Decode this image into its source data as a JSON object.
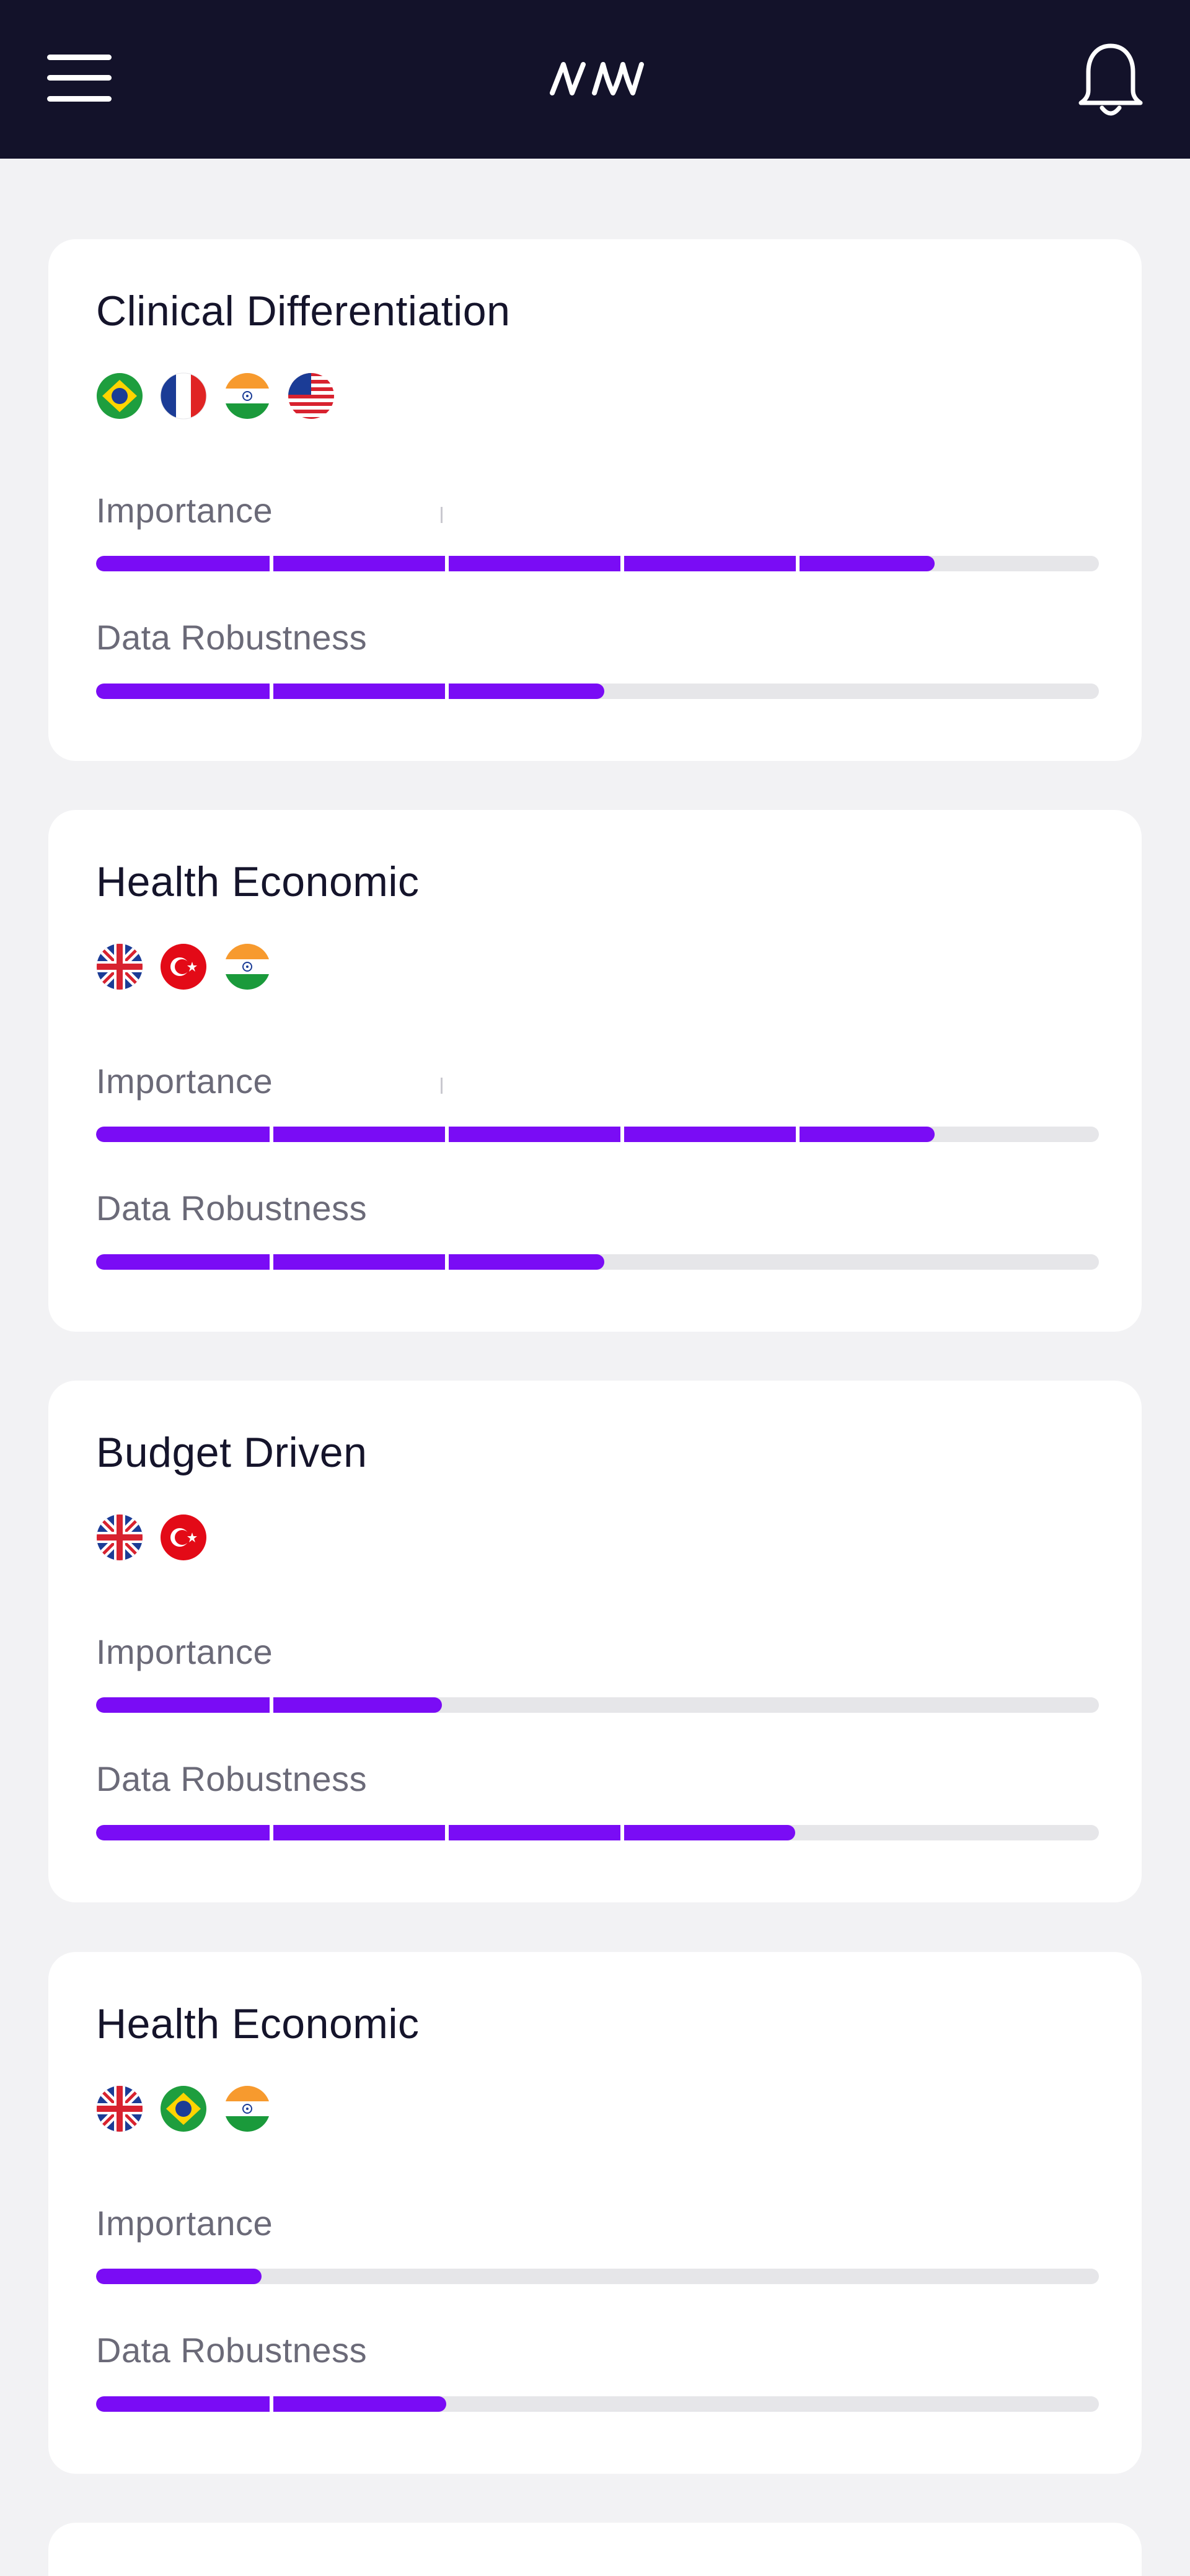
{
  "header": {
    "menu_icon": "hamburger-menu-icon",
    "logo_icon": "nm-logo-icon",
    "notification_icon": "bell-icon"
  },
  "colors": {
    "header_bg": "#13122a",
    "accent": "#7a0cf5",
    "track": "#e6e6e9",
    "page_bg": "#f2f2f4"
  },
  "cards": [
    {
      "title": "Clinical Differentiation",
      "flags": [
        "brazil-flag-icon",
        "france-flag-icon",
        "india-flag-icon",
        "usa-flag-icon"
      ],
      "metrics": [
        {
          "label": "Importance",
          "level": 0.836
        },
        {
          "label": "Data Robustness",
          "level": 0.507
        }
      ]
    },
    {
      "title": "Health Economic",
      "flags": [
        "uk-flag-icon",
        "turkey-flag-icon",
        "india-flag-icon"
      ],
      "metrics": [
        {
          "label": "Importance",
          "level": 0.836
        },
        {
          "label": "Data Robustness",
          "level": 0.507
        }
      ]
    },
    {
      "title": "Budget Driven",
      "flags": [
        "uk-flag-icon",
        "turkey-flag-icon"
      ],
      "metrics": [
        {
          "label": "Importance",
          "level": 0.345
        },
        {
          "label": "Data Robustness",
          "level": 0.697
        }
      ]
    },
    {
      "title": "Health Economic",
      "flags": [
        "uk-flag-icon",
        "brazil-flag-icon",
        "india-flag-icon"
      ],
      "metrics": [
        {
          "label": "Importance",
          "level": 0.165
        },
        {
          "label": "Data Robustness",
          "level": 0.349
        }
      ]
    }
  ]
}
